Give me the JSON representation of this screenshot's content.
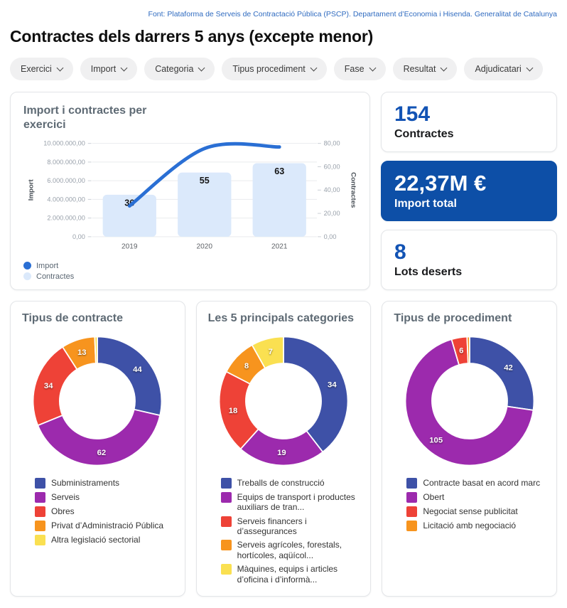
{
  "header": {
    "source": "Font: Plataforma de Serveis de Contractació Pública (PSCP). Departament d’Economia i Hisenda. Generalitat de Catalunya",
    "title": "Contractes dels darrers 5 anys (excepte menor)"
  },
  "filters": [
    "Exercici",
    "Import",
    "Categoria",
    "Tipus procediment",
    "Fase",
    "Resultat",
    "Adjudicatari"
  ],
  "kpis": [
    {
      "value": "154",
      "label": "Contractes",
      "variant": "light"
    },
    {
      "value": "22,37M €",
      "label": "Import total",
      "variant": "primary"
    },
    {
      "value": "8",
      "label": "Lots deserts",
      "variant": "light"
    }
  ],
  "colors": {
    "primary_blue": "#0d4fa7",
    "kpi_number_blue": "#1253b4",
    "line_blue": "#2a6fd4",
    "bar_light_blue": "#dbe9fb",
    "source_text_blue": "#2f6bc0",
    "palette": [
      "#3e51a7",
      "#9c2aad",
      "#ee4237",
      "#f7941e",
      "#fae051"
    ]
  },
  "chart_data": [
    {
      "type": "combo",
      "title": "Import i contractes per exercici",
      "categories": [
        "2019",
        "2020",
        "2021"
      ],
      "series": [
        {
          "name": "Import",
          "type": "line",
          "axis": "left",
          "color": "#2a6fd4",
          "values": [
            3300000,
            9450000,
            9620000
          ]
        },
        {
          "name": "Contractes",
          "type": "bar",
          "axis": "right",
          "color": "#dbe9fb",
          "values": [
            36,
            55,
            63
          ]
        }
      ],
      "left_axis": {
        "label": "Import",
        "range": [
          0,
          10000000
        ],
        "ticks": [
          "0,00",
          "2.000.000,00",
          "4.000.000,00",
          "6.000.000,00",
          "8.000.000,00",
          "10.000.000,00"
        ]
      },
      "right_axis": {
        "label": "Contractes",
        "range": [
          0,
          80
        ],
        "ticks": [
          "0,00",
          "20,00",
          "40,00",
          "60,00",
          "80,00"
        ]
      },
      "grid": true,
      "legend_position": "bottom-left",
      "legend": [
        {
          "name": "Import",
          "color": "#2a6fd4"
        },
        {
          "name": "Contractes",
          "color": "#dbe9fb"
        }
      ]
    },
    {
      "type": "pie",
      "donut": true,
      "title": "Tipus de contracte",
      "labels": [
        "Subministraments",
        "Serveis",
        "Obres",
        "Privat d’Administració Pública",
        "Altra legislació sectorial"
      ],
      "values": [
        44,
        62,
        34,
        13,
        1
      ],
      "colors": [
        "#3e51a7",
        "#9c2aad",
        "#ee4237",
        "#f7941e",
        "#fae051"
      ],
      "legend_position": "bottom-left"
    },
    {
      "type": "pie",
      "donut": true,
      "title": "Les 5 principals categories",
      "labels": [
        "Treballs de construcció",
        "Equips de transport i productes auxiliars de tran...",
        "Serveis financers i d’assegurances",
        "Serveis agrícoles, forestals, hortícoles, aqüícol...",
        "Màquines, equips i articles d’oficina i d’informà..."
      ],
      "values": [
        34,
        19,
        18,
        8,
        7
      ],
      "colors": [
        "#3e51a7",
        "#9c2aad",
        "#ee4237",
        "#f7941e",
        "#fae051"
      ],
      "legend_position": "bottom-left"
    },
    {
      "type": "pie",
      "donut": true,
      "title": "Tipus de procediment",
      "labels": [
        "Contracte basat en acord marc",
        "Obert",
        "Negociat sense publicitat",
        "Licitació amb negociació"
      ],
      "values": [
        42,
        105,
        6,
        1
      ],
      "colors": [
        "#3e51a7",
        "#9c2aad",
        "#ee4237",
        "#f7941e"
      ],
      "legend_position": "bottom-left"
    }
  ]
}
